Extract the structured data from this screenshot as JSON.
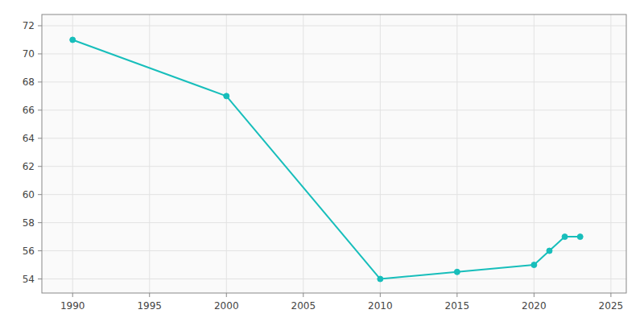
{
  "chart_data": {
    "type": "line",
    "x": [
      1990,
      2000,
      2010,
      2015,
      2020,
      2021,
      2022,
      2023
    ],
    "values": [
      71,
      67,
      54,
      54.5,
      55,
      56,
      57,
      57
    ],
    "color": "#17BEBB",
    "marker": "circle",
    "xlim": [
      1988,
      2026
    ],
    "ylim": [
      53.0,
      72.8
    ],
    "xticks": [
      1990,
      1995,
      2000,
      2005,
      2010,
      2015,
      2020,
      2025
    ],
    "yticks": [
      54,
      56,
      58,
      60,
      62,
      64,
      66,
      68,
      70,
      72
    ],
    "grid": true
  }
}
